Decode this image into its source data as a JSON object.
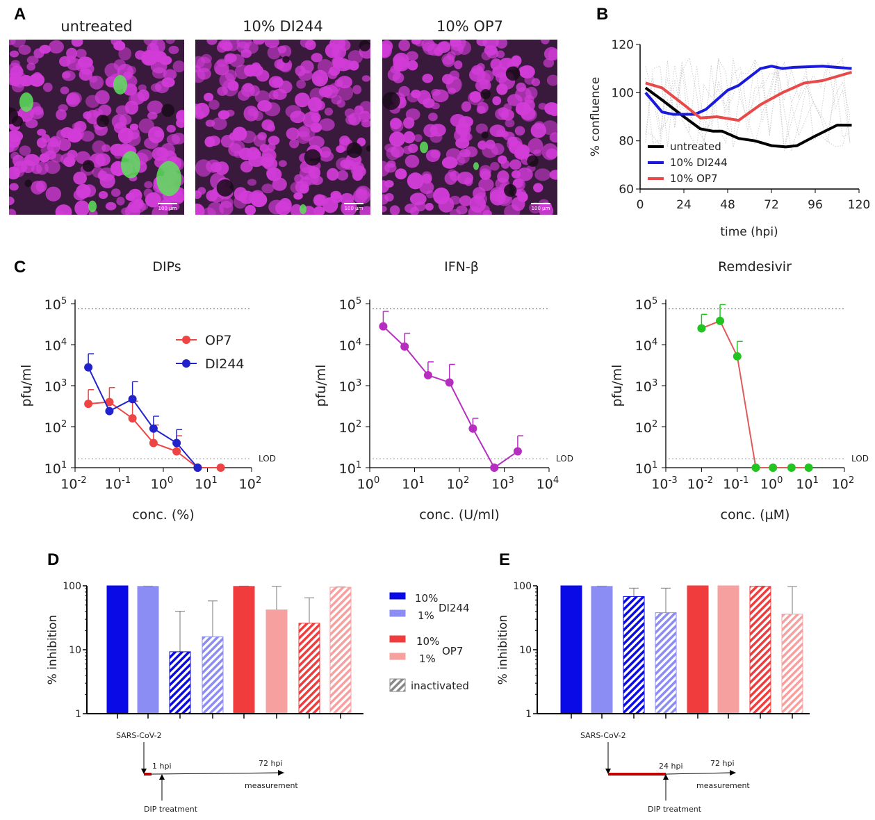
{
  "panel_labels": [
    "A",
    "B",
    "C",
    "D",
    "E"
  ],
  "panel_a": {
    "images": [
      {
        "title": "untreated",
        "scale_bar": "100 µm",
        "green_level": "high"
      },
      {
        "title": "10% DI244",
        "scale_bar": "100 µm",
        "green_level": "low"
      },
      {
        "title": "10% OP7",
        "scale_bar": "100 µm",
        "green_level": "low"
      }
    ],
    "colors": {
      "nuclei": "#d23cd8",
      "infected": "#5de05a",
      "background": "#3a1a3c"
    }
  },
  "chart_data": [
    {
      "id": "B",
      "type": "line",
      "xlabel": "time (hpi)",
      "ylabel": "% confluence",
      "xlim": [
        0,
        120
      ],
      "ylim": [
        60,
        120
      ],
      "xticks": [
        "0",
        "24",
        "48",
        "72",
        "96",
        "120"
      ],
      "yticks": [
        "60",
        "80",
        "100",
        "120"
      ],
      "legend_placement": "bottom-left",
      "series": [
        {
          "name": "untreated",
          "color": "#000000",
          "x": [
            3,
            12,
            24,
            33,
            40,
            45,
            54,
            63,
            72,
            80,
            86,
            96,
            108,
            116
          ],
          "y": [
            102,
            97,
            90,
            85,
            84,
            84,
            81,
            80,
            78,
            77.5,
            78,
            82,
            86.5,
            86.5
          ]
        },
        {
          "name": "10% DI244",
          "color": "#1a1adb",
          "x": [
            3,
            12,
            18,
            30,
            36,
            48,
            54,
            66,
            72,
            78,
            84,
            100,
            116
          ],
          "y": [
            100,
            92,
            91,
            91,
            93,
            101,
            103,
            110,
            111,
            110,
            110.5,
            111,
            110
          ]
        },
        {
          "name": "10% OP7",
          "color": "#e84a4a",
          "x": [
            3,
            12,
            24,
            33,
            42,
            54,
            66,
            78,
            90,
            100,
            116
          ],
          "y": [
            104,
            102,
            95,
            89.5,
            90,
            88.5,
            95,
            100,
            104,
            105,
            108.5
          ]
        }
      ]
    },
    {
      "id": "C1",
      "type": "scatter",
      "title": "DIPs",
      "xlabel": "conc. (%)",
      "ylabel": "pfu/ml",
      "xscale": "log",
      "yscale": "log",
      "xlim": [
        0.01,
        100
      ],
      "ylim": [
        10,
        100000
      ],
      "xticks": [
        "10-2",
        "10-1",
        "100",
        "101",
        "102"
      ],
      "yticks": [
        "101",
        "102",
        "103",
        "104",
        "105"
      ],
      "lod_label": "LOD",
      "lod": 16.5,
      "upper_ref": 75000,
      "legend_placement": "top-right",
      "series": [
        {
          "name": "OP7",
          "color": "#ef4444",
          "x": [
            0.02,
            0.06,
            0.2,
            0.6,
            2,
            6,
            20
          ],
          "y": [
            360,
            400,
            160,
            40,
            25,
            10,
            10
          ],
          "err_upper": [
            800,
            900,
            420,
            110,
            60,
            null,
            null
          ]
        },
        {
          "name": "DI244",
          "color": "#2222cc",
          "x": [
            0.02,
            0.06,
            0.2,
            0.6,
            2,
            6
          ],
          "y": [
            2800,
            240,
            470,
            90,
            40,
            10
          ],
          "err_upper": [
            6000,
            null,
            1250,
            180,
            85,
            null
          ]
        }
      ]
    },
    {
      "id": "C2",
      "type": "scatter",
      "title": "IFN-β",
      "xlabel": "conc. (U/ml)",
      "ylabel": "pfu/ml",
      "xscale": "log",
      "yscale": "log",
      "xlim": [
        1,
        10000
      ],
      "ylim": [
        10,
        100000
      ],
      "xticks": [
        "100",
        "101",
        "102",
        "103",
        "104"
      ],
      "yticks": [
        "101",
        "102",
        "103",
        "104",
        "105"
      ],
      "lod_label": "LOD",
      "lod": 16.5,
      "upper_ref": 75000,
      "series": [
        {
          "color": "#b52ec0",
          "x": [
            2,
            6,
            20,
            60,
            200,
            600,
            2000
          ],
          "y": [
            28000,
            9000,
            1800,
            1200,
            90,
            10,
            25
          ],
          "err_upper": [
            65000,
            19000,
            3800,
            3300,
            160,
            null,
            60
          ]
        }
      ]
    },
    {
      "id": "C3",
      "type": "scatter",
      "title": "Remdesivir",
      "xlabel": "conc. (µM)",
      "ylabel": "pfu/ml",
      "xscale": "log",
      "yscale": "log",
      "xlim": [
        0.001,
        100
      ],
      "ylim": [
        10,
        100000
      ],
      "xticks": [
        "10-3",
        "10-2",
        "10-1",
        "100",
        "101",
        "102"
      ],
      "yticks": [
        "101",
        "102",
        "103",
        "104",
        "105"
      ],
      "lod_label": "LOD",
      "lod": 16.5,
      "upper_ref": 75000,
      "series": [
        {
          "color": "#22c422",
          "line_color": "#e05a5a",
          "x": [
            0.01,
            0.033,
            0.1,
            0.33,
            1,
            3.3,
            10
          ],
          "y": [
            25000,
            38000,
            5200,
            10,
            10,
            10,
            10
          ],
          "err_upper": [
            55000,
            95000,
            12000,
            null,
            null,
            null,
            null
          ]
        }
      ]
    },
    {
      "id": "D",
      "type": "bar",
      "ylabel": "% inhibition",
      "yscale": "log",
      "ylim": [
        1,
        100
      ],
      "yticks": [
        "1",
        "10",
        "100"
      ],
      "categories": [
        "DI244 10%",
        "DI244 1%",
        "DI244 10% inactivated",
        "DI244 1% inactivated",
        "OP7 10%",
        "OP7 1%",
        "OP7 10% inactivated",
        "OP7 1% inactivated"
      ],
      "values": [
        100,
        98,
        9.3,
        16,
        98,
        42,
        26,
        95
      ],
      "err_upper": [
        100,
        99,
        40,
        58,
        99,
        98,
        65,
        96
      ],
      "timeline": {
        "infection": "SARS-CoV-2",
        "treatment": "DIP treatment",
        "t1": "1 hpi",
        "t2": "72 hpi",
        "end": "measurement"
      }
    },
    {
      "id": "E",
      "type": "bar",
      "ylabel": "% inhibition",
      "yscale": "log",
      "ylim": [
        1,
        100
      ],
      "yticks": [
        "1",
        "10",
        "100"
      ],
      "categories": [
        "DI244 10%",
        "DI244 1%",
        "DI244 10% inactivated",
        "DI244 1% inactivated",
        "OP7 10%",
        "OP7 1%",
        "OP7 10% inactivated",
        "OP7 1% inactivated"
      ],
      "values": [
        100,
        98,
        68,
        38,
        100,
        100,
        98,
        36
      ],
      "err_upper": [
        100,
        99,
        92,
        92,
        100,
        100,
        99,
        97
      ],
      "timeline": {
        "infection": "SARS-CoV-2",
        "treatment": "DIP treatment",
        "t1": "24 hpi",
        "t2": "72 hpi",
        "end": "measurement"
      }
    }
  ],
  "bar_legend": {
    "items": [
      {
        "label": "10%",
        "color": "#0a0ae6",
        "hatch": false
      },
      {
        "label": "1%",
        "color": "#8c8cf5",
        "hatch": false
      },
      {
        "label": "10%",
        "color": "#f03c3c",
        "hatch": false
      },
      {
        "label": "1%",
        "color": "#f7a0a0",
        "hatch": false
      },
      {
        "label": "inactivated",
        "color": "#888888",
        "hatch": true
      }
    ],
    "groups": [
      "DI244",
      "OP7"
    ]
  }
}
